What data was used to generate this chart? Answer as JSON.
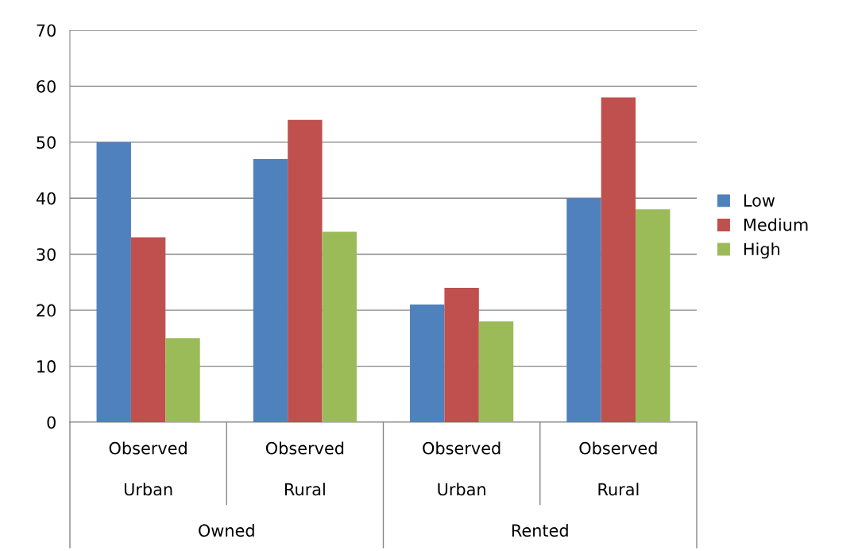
{
  "chart_data": {
    "type": "bar",
    "categories": [
      "Observed\nUrban",
      "Observed\nRural",
      "Observed\nUrban",
      "Observed\nRural"
    ],
    "series": [
      {
        "name": "Low",
        "color": "#4f81bd",
        "values": [
          50,
          47,
          21,
          40
        ]
      },
      {
        "name": "Medium",
        "color": "#c0504d",
        "values": [
          33,
          54,
          24,
          58
        ]
      },
      {
        "name": "High",
        "color": "#9bbb59",
        "values": [
          15,
          34,
          18,
          38
        ]
      }
    ],
    "annotations": [
      "Owned",
      "Rented"
    ],
    "ylim": [
      0,
      70
    ],
    "yticks": [
      0,
      10,
      20,
      30,
      40,
      50,
      60,
      70
    ],
    "grid": "y",
    "legend": "right"
  }
}
